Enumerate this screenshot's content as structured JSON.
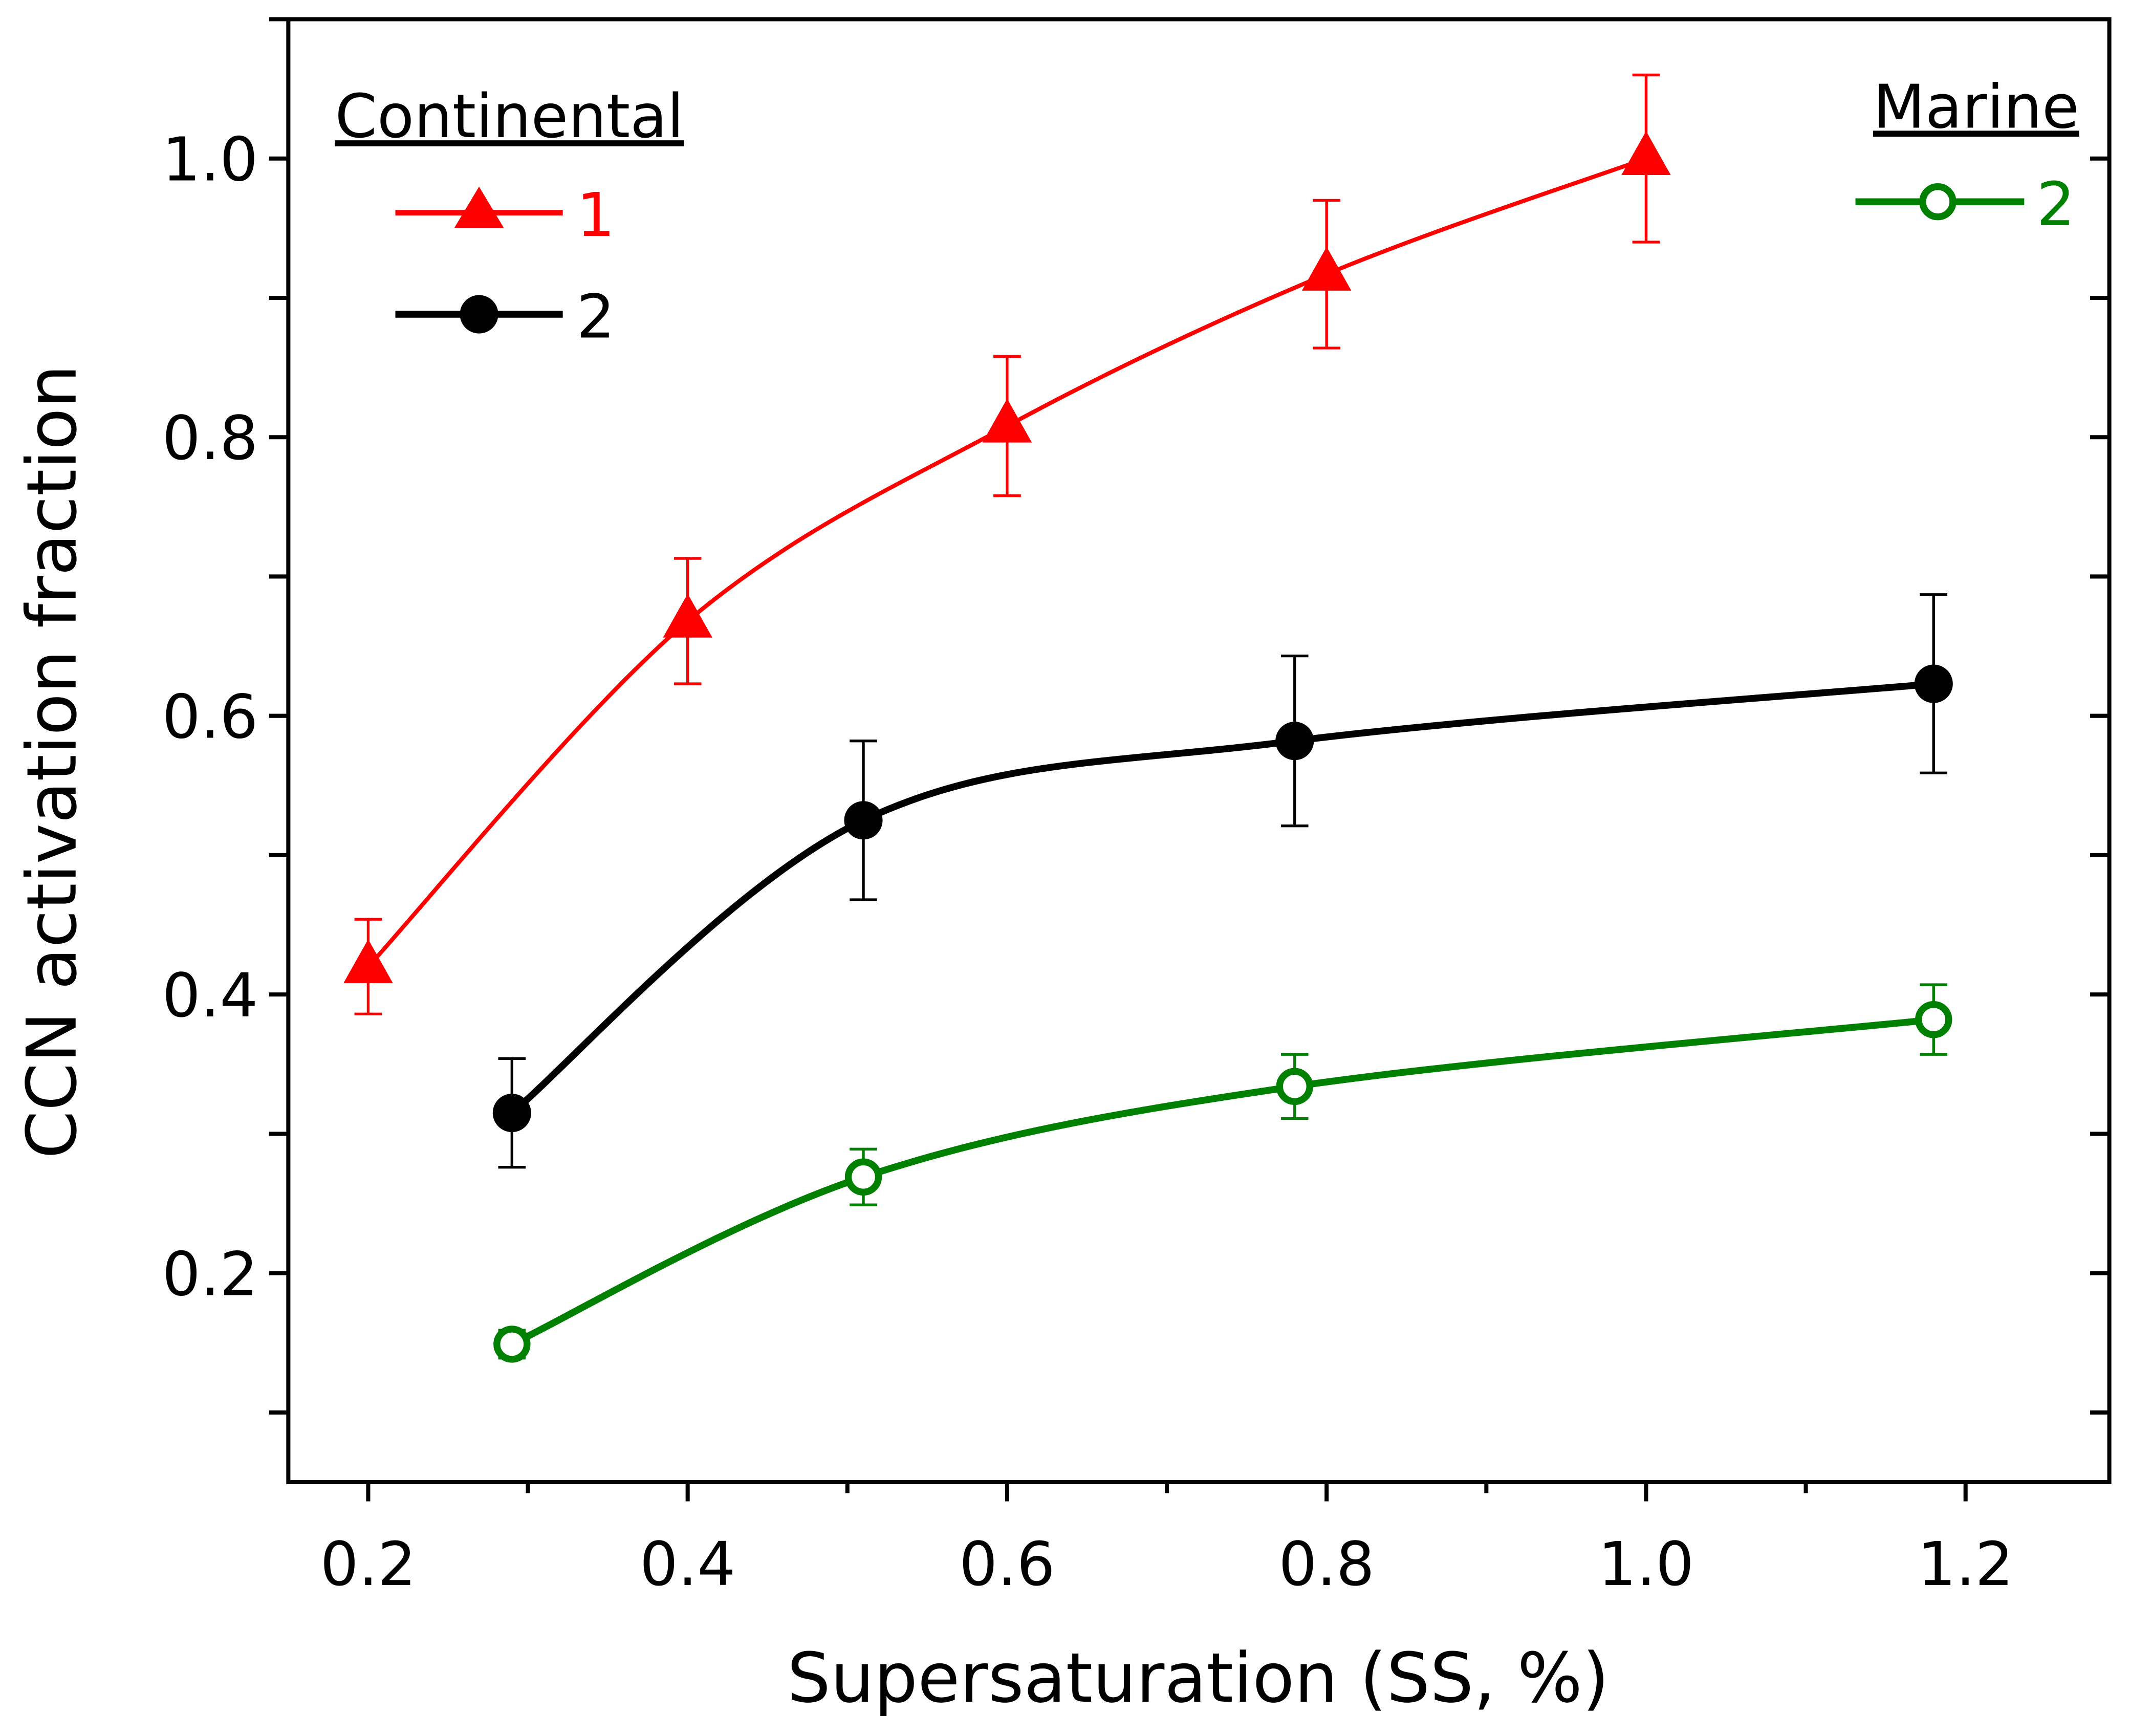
{
  "chart_data": {
    "type": "line",
    "title": "",
    "xlabel": "Supersaturation (SS, %)",
    "ylabel": "CCN activation fraction",
    "xlim": [
      0.15,
      1.29
    ],
    "ylim": [
      0.05,
      1.1
    ],
    "xticks": [
      0.2,
      0.4,
      0.6,
      0.8,
      1.0,
      1.2
    ],
    "xtick_labels": [
      "0.2",
      "0.4",
      "0.6",
      "0.8",
      "1.0",
      "1.2"
    ],
    "yticks": [
      0.2,
      0.4,
      0.6,
      0.8,
      1.0
    ],
    "ytick_labels": [
      "0.2",
      "0.4",
      "0.6",
      "0.8",
      "1.0"
    ],
    "grid": false,
    "legend_groups": [
      {
        "title": "Continental",
        "placement": "top-left",
        "entries": [
          0,
          1
        ]
      },
      {
        "title": "Marine",
        "placement": "top-right",
        "entries": [
          2
        ]
      }
    ],
    "series": [
      {
        "name": "1",
        "group": "Continental",
        "color": "#ff0000",
        "marker": "filled-triangle",
        "x": [
          0.2,
          0.4,
          0.6,
          0.8,
          1.0
        ],
        "y": [
          0.42,
          0.668,
          0.808,
          0.917,
          1.0
        ],
        "err": [
          0.034,
          0.045,
          0.05,
          0.053,
          0.06
        ]
      },
      {
        "name": "2",
        "group": "Continental",
        "color": "#000000",
        "marker": "filled-circle",
        "x": [
          0.29,
          0.51,
          0.78,
          1.18
        ],
        "y": [
          0.315,
          0.525,
          0.582,
          0.623
        ],
        "err": [
          0.039,
          0.057,
          0.061,
          0.064
        ]
      },
      {
        "name": "2",
        "group": "Marine",
        "color": "#008000",
        "marker": "open-circle",
        "x": [
          0.29,
          0.51,
          0.78,
          1.18
        ],
        "y": [
          0.149,
          0.269,
          0.334,
          0.382
        ],
        "err": [
          0.01,
          0.02,
          0.023,
          0.025
        ]
      }
    ]
  }
}
